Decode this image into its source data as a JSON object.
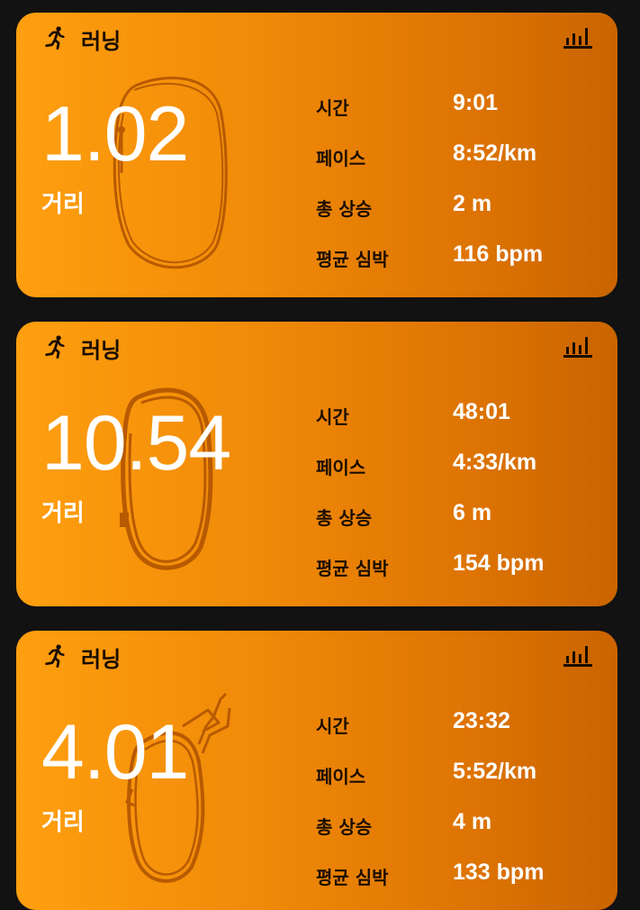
{
  "activities": [
    {
      "type_label": "러닝",
      "distance": "1.02",
      "distance_label": "거리",
      "metrics": [
        {
          "label": "시간",
          "value": "9:01"
        },
        {
          "label": "페이스",
          "value": "8:52/km"
        },
        {
          "label": "총 상승",
          "value": "2 m"
        },
        {
          "label": "평균 심박",
          "value": "116 bpm"
        }
      ]
    },
    {
      "type_label": "러닝",
      "distance": "10.54",
      "distance_label": "거리",
      "metrics": [
        {
          "label": "시간",
          "value": "48:01"
        },
        {
          "label": "페이스",
          "value": "4:33/km"
        },
        {
          "label": "총 상승",
          "value": "6 m"
        },
        {
          "label": "평균 심박",
          "value": "154 bpm"
        }
      ]
    },
    {
      "type_label": "러닝",
      "distance": "4.01",
      "distance_label": "거리",
      "metrics": [
        {
          "label": "시간",
          "value": "23:32"
        },
        {
          "label": "페이스",
          "value": "5:52/km"
        },
        {
          "label": "총 상승",
          "value": "4 m"
        },
        {
          "label": "평균 심박",
          "value": "133 bpm"
        }
      ]
    }
  ],
  "icons": {
    "activity": "running-person-icon",
    "stats": "bar-chart-icon"
  },
  "colors": {
    "card_gradient_start": "#ff9f0f",
    "card_gradient_end": "#c96400",
    "label_text": "#1a0d00",
    "value_text": "#ffffff",
    "background": "#121212",
    "route_stroke": "#b85a00"
  }
}
